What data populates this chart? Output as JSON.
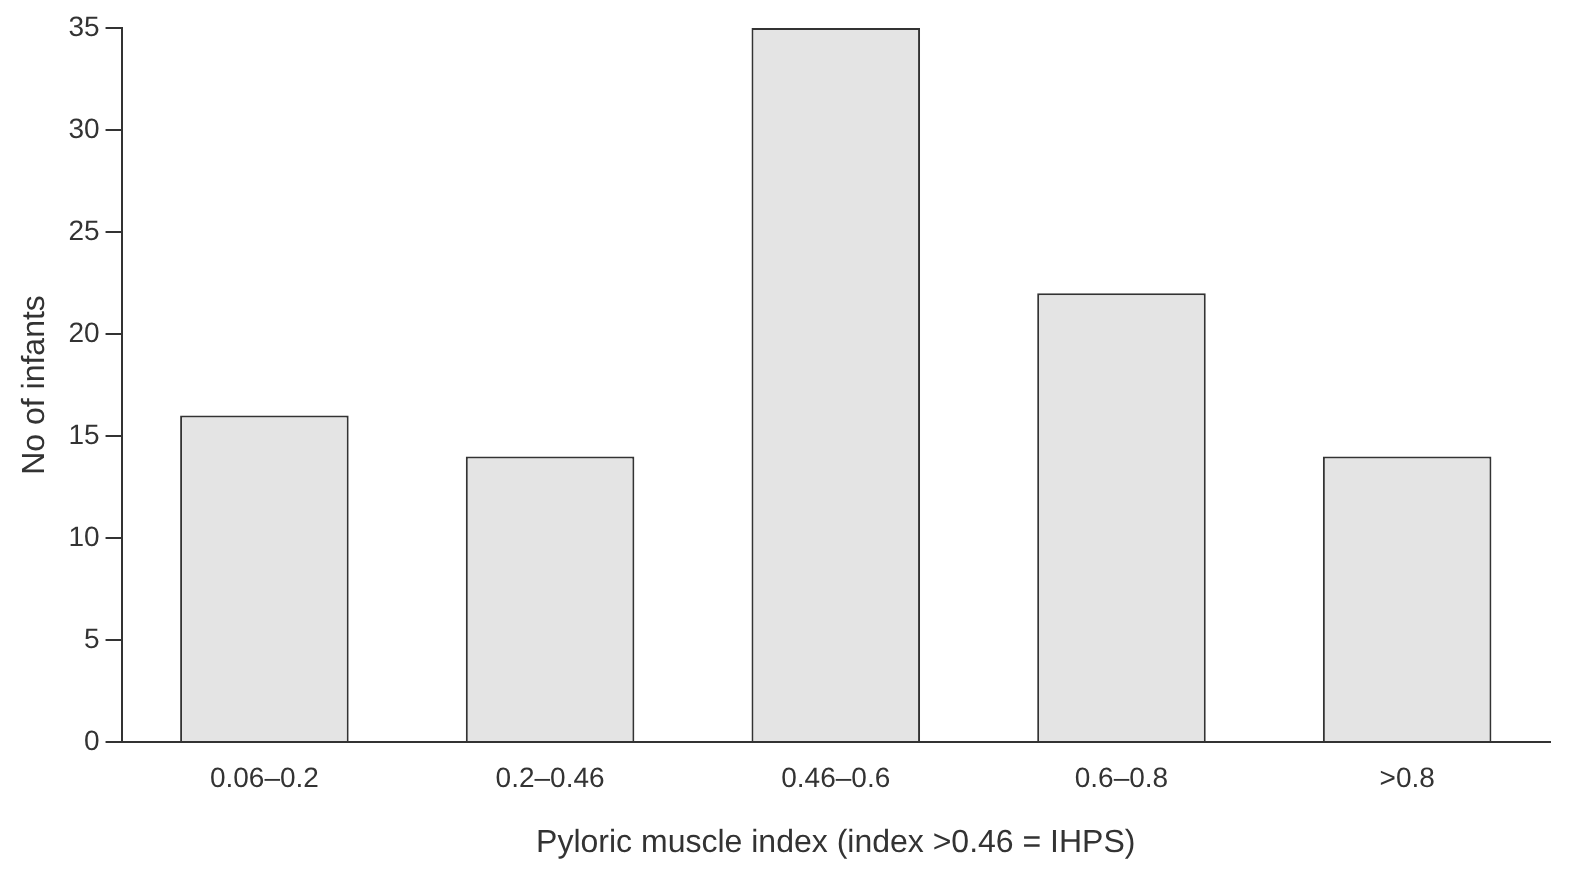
{
  "chart_data": {
    "type": "bar",
    "xlabel": "Pyloric muscle index (index >0.46 = IHPS)",
    "ylabel": "No of infants",
    "categories": [
      "0.06–0.2",
      "0.2–0.46",
      "0.46–0.6",
      "0.6–0.8",
      ">0.8"
    ],
    "values": [
      16,
      14,
      35,
      22,
      14
    ],
    "color": "#e4e4e4",
    "ylim": [
      0,
      35
    ],
    "yticks": [
      0,
      5,
      10,
      15,
      20,
      25,
      30,
      35
    ],
    "grid": false,
    "legend": false
  }
}
